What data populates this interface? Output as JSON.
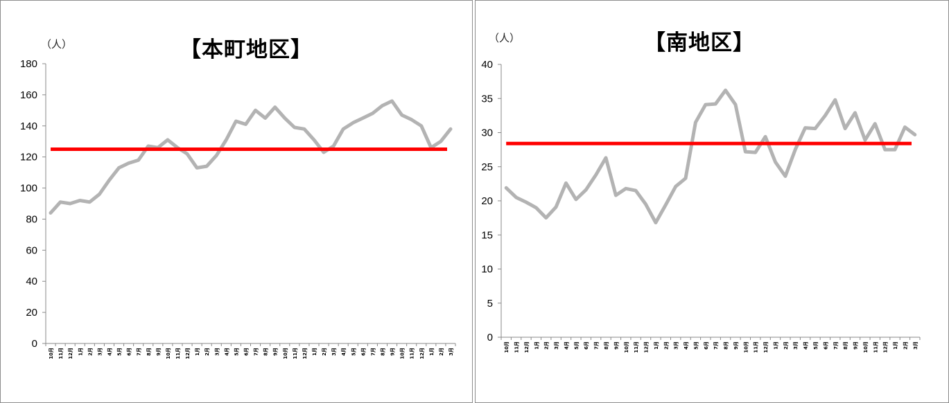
{
  "chart_data": [
    {
      "type": "line",
      "title": "【本町地区】",
      "ylabel": "（人）",
      "ylim": [
        0,
        180
      ],
      "yticks": [
        0,
        20,
        40,
        60,
        80,
        100,
        120,
        140,
        160,
        180
      ],
      "categories": [
        "10月",
        "11月",
        "12月",
        "1月",
        "2月",
        "3月",
        "4月",
        "5月",
        "6月",
        "7月",
        "8月",
        "9月",
        "10月",
        "11月",
        "12月",
        "1月",
        "2月",
        "3月",
        "4月",
        "5月",
        "6月",
        "7月",
        "8月",
        "9月",
        "10月",
        "11月",
        "12月",
        "1月",
        "2月",
        "3月",
        "4月",
        "5月",
        "6月",
        "7月",
        "8月",
        "9月",
        "10月",
        "11月",
        "12月",
        "1月",
        "2月",
        "3月"
      ],
      "series": [
        {
          "values": [
            84,
            91,
            90,
            92,
            91,
            96,
            105,
            113,
            116,
            118,
            127,
            126,
            131,
            126,
            122,
            113,
            114,
            121,
            131,
            143,
            141,
            150,
            145,
            152,
            145,
            139,
            138,
            131,
            123,
            127,
            138,
            142,
            145,
            148,
            153,
            156,
            147,
            144,
            140,
            126,
            130,
            138
          ],
          "color": "#b3b3b3"
        }
      ],
      "reference_line": {
        "value": 125,
        "color": "#ff0000"
      },
      "grid": false
    },
    {
      "type": "line",
      "title": "【南地区】",
      "ylabel": "（人）",
      "ylim": [
        0,
        40
      ],
      "yticks": [
        0,
        5,
        10,
        15,
        20,
        25,
        30,
        35,
        40
      ],
      "categories": [
        "10月",
        "11月",
        "12月",
        "1月",
        "2月",
        "3月",
        "4月",
        "5月",
        "6月",
        "7月",
        "8月",
        "9月",
        "10月",
        "11月",
        "12月",
        "1月",
        "2月",
        "3月",
        "4月",
        "5月",
        "6月",
        "7月",
        "8月",
        "9月",
        "10月",
        "11月",
        "12月",
        "1月",
        "2月",
        "3月",
        "4月",
        "5月",
        "6月",
        "7月",
        "8月",
        "9月",
        "10月",
        "11月",
        "12月",
        "1月",
        "2月",
        "3月"
      ],
      "series": [
        {
          "values": [
            21.9,
            20.5,
            19.8,
            19,
            17.5,
            19.1,
            22.6,
            20.2,
            21.6,
            23.8,
            26.3,
            20.8,
            21.8,
            21.5,
            19.5,
            16.8,
            19.4,
            22.1,
            23.3,
            31.5,
            34.1,
            34.2,
            36.2,
            34.1,
            27.2,
            27.1,
            29.4,
            25.7,
            23.6,
            27.5,
            30.7,
            30.6,
            32.5,
            34.8,
            30.6,
            32.9,
            28.9,
            31.3,
            27.5,
            27.5,
            30.8,
            29.7
          ],
          "color": "#b3b3b3"
        }
      ],
      "reference_line": {
        "value": 28.4,
        "color": "#ff0000"
      },
      "grid": false
    }
  ]
}
